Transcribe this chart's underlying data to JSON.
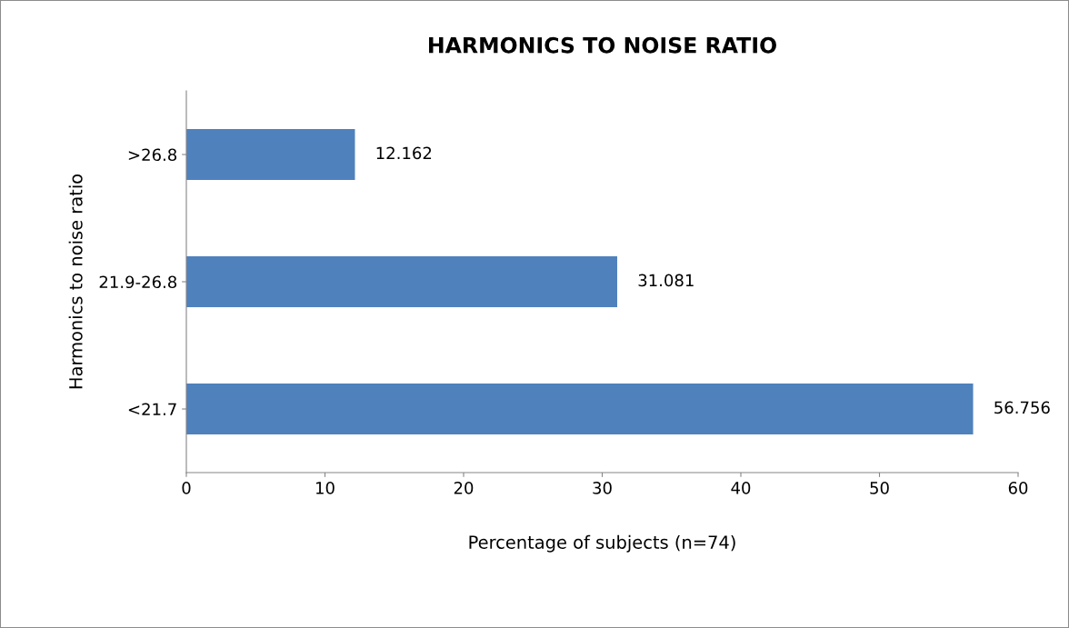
{
  "chart_data": {
    "type": "bar",
    "orientation": "horizontal",
    "title": "HARMONICS TO NOISE RATIO",
    "xlabel": "Percentage of subjects (n=74)",
    "ylabel": "Harmonics to noise ratio",
    "categories": [
      ">26.8",
      "21.9-26.8",
      "<21.7"
    ],
    "values": [
      12.162,
      31.081,
      56.756
    ],
    "color": "#4f81bd",
    "xlim": [
      0,
      60
    ],
    "xticks": [
      0,
      10,
      20,
      30,
      40,
      50,
      60
    ],
    "grid": false,
    "data_labels": true
  }
}
